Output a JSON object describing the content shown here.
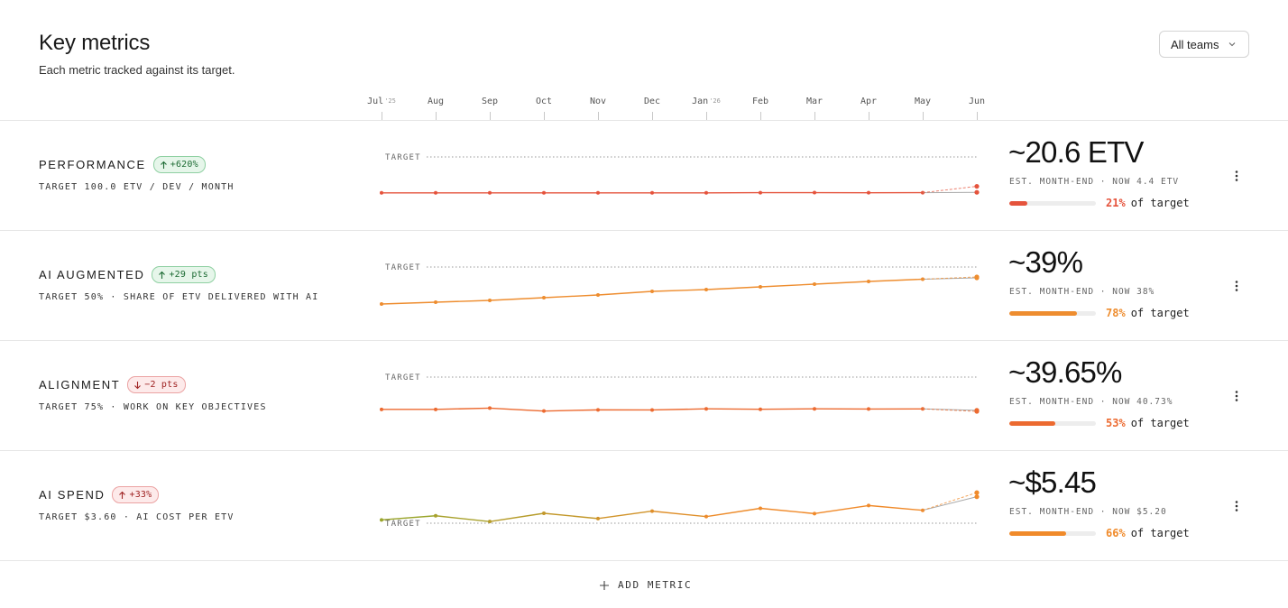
{
  "header": {
    "title": "Key metrics",
    "subtitle": "Each metric tracked against its target."
  },
  "team_filter": {
    "selected": "All teams",
    "icon": "chevron-down-icon"
  },
  "timeline": [
    {
      "label": "Jul",
      "year": "'25"
    },
    {
      "label": "Aug",
      "year": ""
    },
    {
      "label": "Sep",
      "year": ""
    },
    {
      "label": "Oct",
      "year": ""
    },
    {
      "label": "Nov",
      "year": ""
    },
    {
      "label": "Dec",
      "year": ""
    },
    {
      "label": "Jan",
      "year": "'26"
    },
    {
      "label": "Feb",
      "year": ""
    },
    {
      "label": "Mar",
      "year": ""
    },
    {
      "label": "Apr",
      "year": ""
    },
    {
      "label": "May",
      "year": ""
    },
    {
      "label": "Jun",
      "year": ""
    }
  ],
  "target_label": "TARGET",
  "metrics": [
    {
      "name": "PERFORMANCE",
      "badge": "+620%",
      "badge_tone": "good",
      "badge_direction": "up",
      "target_line": "TARGET 100.0 ETV / DEV / MONTH",
      "estimate": "~20.6 ETV",
      "est_caption": "EST. MONTH-END · NOW 4.4 ETV",
      "progress": 0.21,
      "progress_text": "21%",
      "of_target": "of target",
      "accent": "#e5533c",
      "target_position": "above",
      "values": [
        2.9,
        2.9,
        2.9,
        2.9,
        2.9,
        2.9,
        3.0,
        3.4,
        3.6,
        3.3,
        3.4
      ],
      "projected": 20.6,
      "now": 4.4,
      "target": 100,
      "range": [
        0,
        100
      ]
    },
    {
      "name": "AI AUGMENTED",
      "badge": "+29 pts",
      "badge_tone": "good",
      "badge_direction": "up",
      "target_line": "TARGET 50% · SHARE OF ETV DELIVERED WITH AI",
      "estimate": "~39%",
      "est_caption": "EST. MONTH-END · NOW 38%",
      "progress": 0.78,
      "progress_text": "78%",
      "of_target": "of target",
      "accent": "#ee8d2f",
      "target_position": "above",
      "values": [
        9,
        11,
        13,
        16,
        19,
        23,
        25,
        28,
        31,
        34,
        36.5
      ],
      "projected": 39,
      "now": 38,
      "target": 50,
      "range": [
        9,
        50
      ]
    },
    {
      "name": "ALIGNMENT",
      "badge": "−2 pts",
      "badge_tone": "bad",
      "badge_direction": "down",
      "target_line": "TARGET 75% · WORK ON KEY OBJECTIVES",
      "estimate": "~39.65%",
      "est_caption": "EST. MONTH-END · NOW 40.73%",
      "progress": 0.53,
      "progress_text": "53%",
      "of_target": "of target",
      "accent": "#ec6a30",
      "target_position": "above",
      "values": [
        41.7,
        41.7,
        43.0,
        40.0,
        41.2,
        41.1,
        42.3,
        41.8,
        42.3,
        42.1,
        42.2
      ],
      "projected": 39.65,
      "now": 40.73,
      "target": 75,
      "range": [
        36.9,
        75
      ]
    },
    {
      "name": "AI SPEND",
      "badge": "+33%",
      "badge_tone": "bad",
      "badge_direction": "up",
      "target_line": "TARGET $3.60 · AI COST PER ETV",
      "estimate": "~$5.45",
      "est_caption": "EST. MONTH-END · NOW $5.20",
      "progress": 0.66,
      "progress_text": "66%",
      "of_target": "of target",
      "accent": "#f08a2a",
      "target_position": "below",
      "values": [
        3.8,
        4.05,
        3.7,
        4.2,
        3.88,
        4.33,
        4.0,
        4.5,
        4.18,
        4.67,
        4.38
      ],
      "projected": 5.45,
      "now": 5.2,
      "target": 3.6,
      "range": [
        3.6,
        6.0
      ]
    }
  ],
  "add_metric": "ADD METRIC"
}
